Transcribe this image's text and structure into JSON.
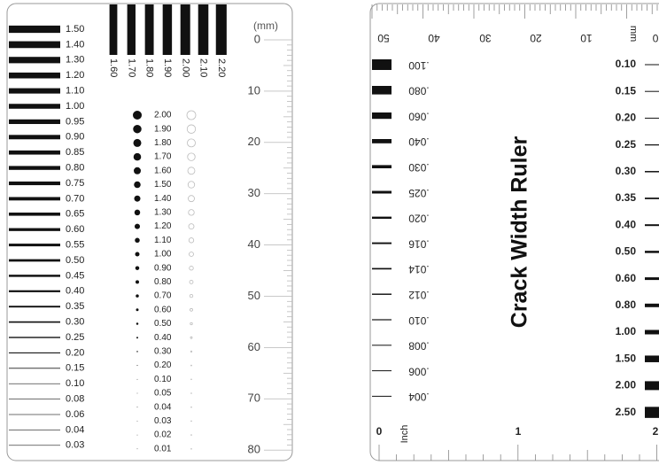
{
  "left_card": {
    "unit": "(mm)",
    "line_widths": [
      "1.50",
      "1.40",
      "1.30",
      "1.20",
      "1.10",
      "1.00",
      "0.95",
      "0.90",
      "0.85",
      "0.80",
      "0.75",
      "0.70",
      "0.65",
      "0.60",
      "0.55",
      "0.50",
      "0.45",
      "0.40",
      "0.35",
      "0.30",
      "0.25",
      "0.20",
      "0.15",
      "0.10",
      "0.08",
      "0.06",
      "0.04",
      "0.03"
    ],
    "bar_widths": [
      "1.60",
      "1.70",
      "1.80",
      "1.90",
      "2.00",
      "2.10",
      "2.20"
    ],
    "dot_sizes": [
      "2.00",
      "1.90",
      "1.80",
      "1.70",
      "1.60",
      "1.50",
      "1.40",
      "1.30",
      "1.20",
      "1.10",
      "1.00",
      "0.90",
      "0.80",
      "0.70",
      "0.60",
      "0.50",
      "0.40",
      "0.30",
      "0.20",
      "0.10",
      "0.05",
      "0.04",
      "0.03",
      "0.02",
      "0.01"
    ],
    "scale_labels": [
      "0",
      "10",
      "20",
      "30",
      "40",
      "50",
      "60",
      "70",
      "80"
    ]
  },
  "right_card": {
    "title": "Crack Width Ruler",
    "mm_unit": "mm",
    "mm_labels": [
      "50",
      "40",
      "30",
      "20",
      "10",
      "0"
    ],
    "inch_widths": [
      ".100",
      ".080",
      ".060",
      ".040",
      ".030",
      ".025",
      ".020",
      ".016",
      ".014",
      ".012",
      ".010",
      ".008",
      ".006",
      ".004"
    ],
    "mm_widths": [
      "0.10",
      "0.15",
      "0.20",
      "0.25",
      "0.30",
      "0.35",
      "0.40",
      "0.50",
      "0.60",
      "0.80",
      "1.00",
      "1.50",
      "2.00",
      "2.50"
    ],
    "inch_unit": "Inch",
    "inch_labels": [
      "0",
      "1",
      "2"
    ]
  }
}
